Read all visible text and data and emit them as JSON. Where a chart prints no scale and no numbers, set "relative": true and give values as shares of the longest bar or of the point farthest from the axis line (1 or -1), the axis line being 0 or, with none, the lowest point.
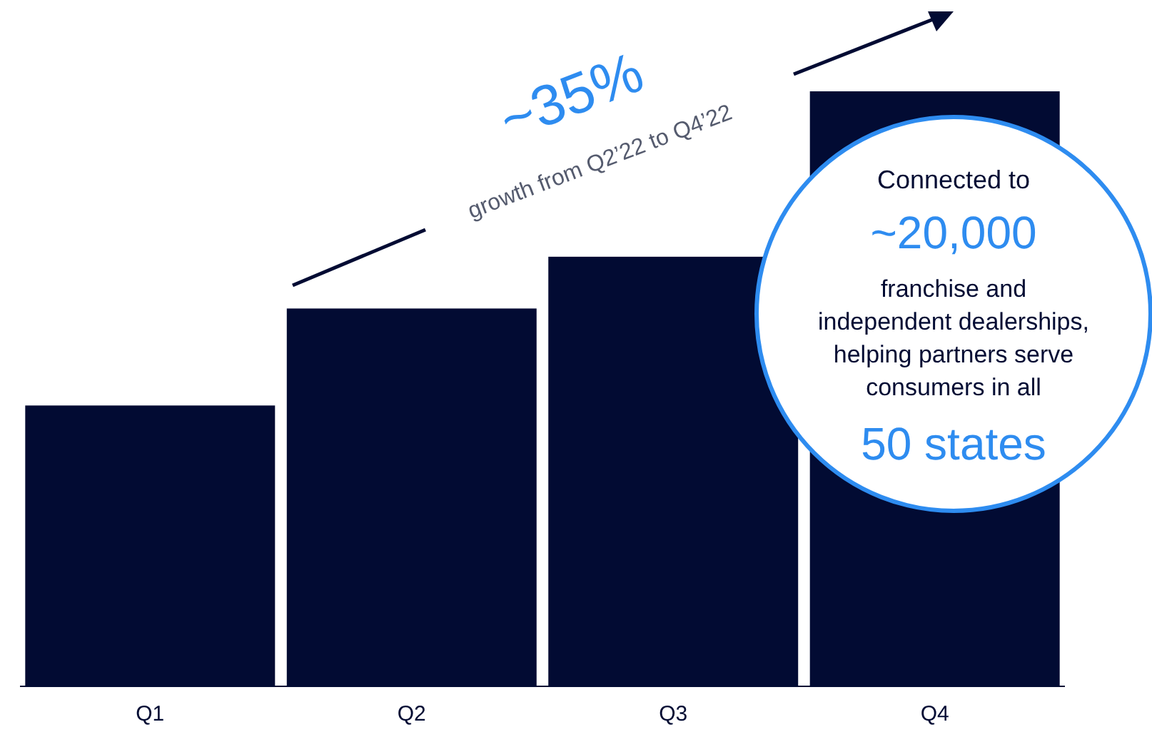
{
  "chart_data": {
    "type": "bar",
    "relative": true,
    "categories": [
      "Q1",
      "Q2",
      "Q3",
      "Q4"
    ],
    "values": [
      0.472,
      0.635,
      0.722,
      1
    ],
    "color": "#020b33",
    "annotations": [
      "~35%",
      "growth from Q2’22 to Q4’22",
      "Connected to",
      "~20,000",
      "franchise and\nindependent dealerships,\nhelping partners serve\nconsumers in all",
      "50 states"
    ]
  }
}
